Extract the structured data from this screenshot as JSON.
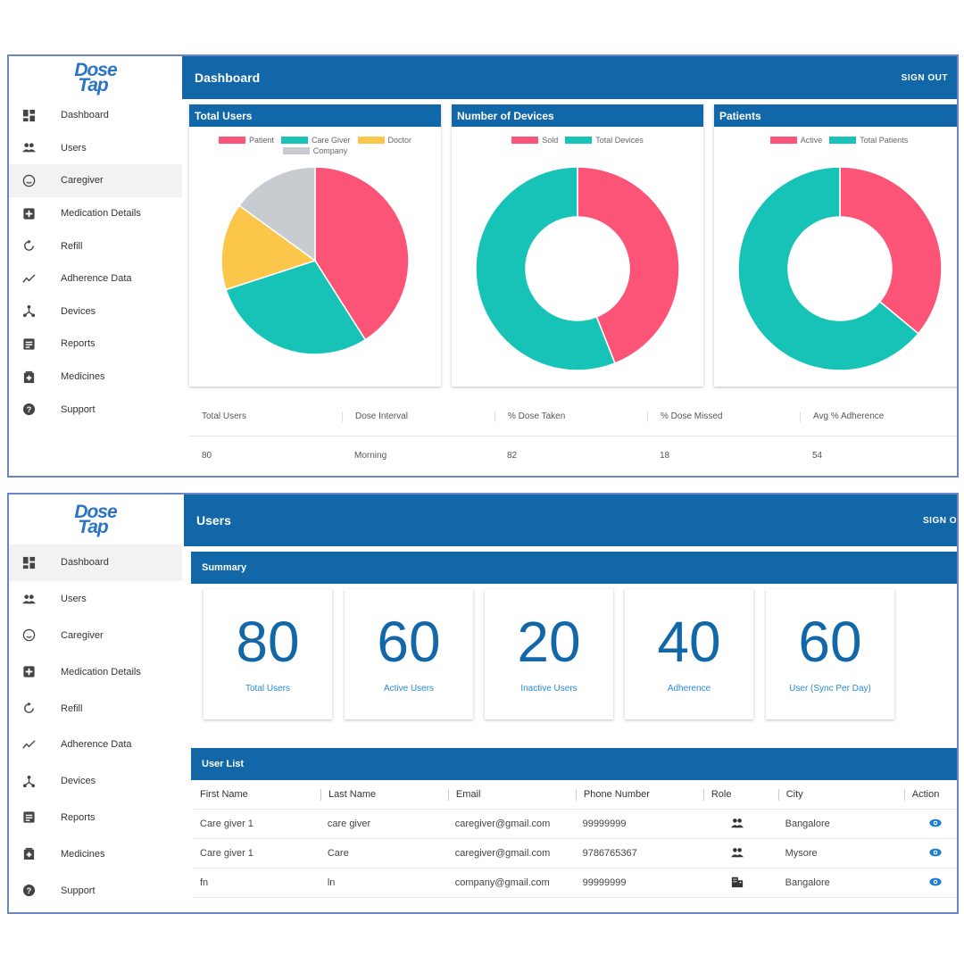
{
  "brand": {
    "line1": "Dose",
    "line2": "Tap"
  },
  "colors": {
    "primary": "#1267a8",
    "pink": "#fb5476",
    "teal": "#17c3b6",
    "yellow": "#fcc64a",
    "grey": "#c8cbd0",
    "accent_text": "#2b8ad6"
  },
  "nav": [
    {
      "label": "Dashboard",
      "icon": "dashboard-icon"
    },
    {
      "label": "Users",
      "icon": "users-icon"
    },
    {
      "label": "Caregiver",
      "icon": "caregiver-icon"
    },
    {
      "label": "Medication Details",
      "icon": "medication-icon"
    },
    {
      "label": "Refill",
      "icon": "refill-icon"
    },
    {
      "label": "Adherence Data",
      "icon": "adherence-icon"
    },
    {
      "label": "Devices",
      "icon": "devices-icon"
    },
    {
      "label": "Reports",
      "icon": "reports-icon"
    },
    {
      "label": "Medicines",
      "icon": "medicines-icon"
    },
    {
      "label": "Support",
      "icon": "support-icon"
    }
  ],
  "dashboard": {
    "title": "Dashboard",
    "signout": "SIGN OUT",
    "cards": {
      "total_users": {
        "title": "Total Users",
        "legend": [
          "Patient",
          "Care Giver",
          "Doctor",
          "Company"
        ]
      },
      "devices": {
        "title": "Number of Devices",
        "legend": [
          "Sold",
          "Total Devices"
        ]
      },
      "patients": {
        "title": "Patients",
        "legend": [
          "Active",
          "Total Patients"
        ]
      }
    },
    "stats": {
      "headers": [
        "Total Users",
        "Dose Interval",
        "% Dose Taken",
        "% Dose Missed",
        "Avg % Adherence"
      ],
      "values": [
        "80",
        "Morning",
        "82",
        "18",
        "54"
      ]
    }
  },
  "chart_data": [
    {
      "type": "pie",
      "title": "Total Users",
      "categories": [
        "Patient",
        "Care Giver",
        "Doctor",
        "Company"
      ],
      "values": [
        41,
        29,
        15,
        15
      ],
      "colors": [
        "#fb5476",
        "#17c3b6",
        "#fcc64a",
        "#c8cbd0"
      ]
    },
    {
      "type": "pie",
      "donut": true,
      "title": "Number of Devices",
      "categories": [
        "Sold",
        "Total Devices"
      ],
      "values": [
        44,
        56
      ],
      "colors": [
        "#fb5476",
        "#17c3b6"
      ]
    },
    {
      "type": "pie",
      "donut": true,
      "title": "Patients",
      "categories": [
        "Active",
        "Total Patients"
      ],
      "values": [
        36,
        64
      ],
      "colors": [
        "#fb5476",
        "#17c3b6"
      ]
    }
  ],
  "users_page": {
    "title": "Users",
    "signout": "SIGN OUT",
    "summary_title": "Summary",
    "summary": [
      {
        "value": "80",
        "label": "Total Users"
      },
      {
        "value": "60",
        "label": "Active Users"
      },
      {
        "value": "20",
        "label": "Inactive Users"
      },
      {
        "value": "40",
        "label": "Adherence"
      },
      {
        "value": "60",
        "label": "User (Sync Per Day)"
      }
    ],
    "list_title": "User List",
    "columns": [
      "First Name",
      "Last Name",
      "Email",
      "Phone Number",
      "Role",
      "City",
      "Action"
    ],
    "rows": [
      {
        "first": "Care giver 1",
        "last": "care giver",
        "email": "caregiver@gmail.com",
        "phone": "99999999",
        "role_icon": "caregiver-role-icon",
        "city": "Bangalore"
      },
      {
        "first": "Care giver 1",
        "last": "Care",
        "email": "caregiver@gmail.com",
        "phone": "9786765367",
        "role_icon": "caregiver-role-icon",
        "city": "Mysore"
      },
      {
        "first": "fn",
        "last": "ln",
        "email": "company@gmail.com",
        "phone": "99999999",
        "role_icon": "company-role-icon",
        "city": "Bangalore"
      }
    ]
  }
}
